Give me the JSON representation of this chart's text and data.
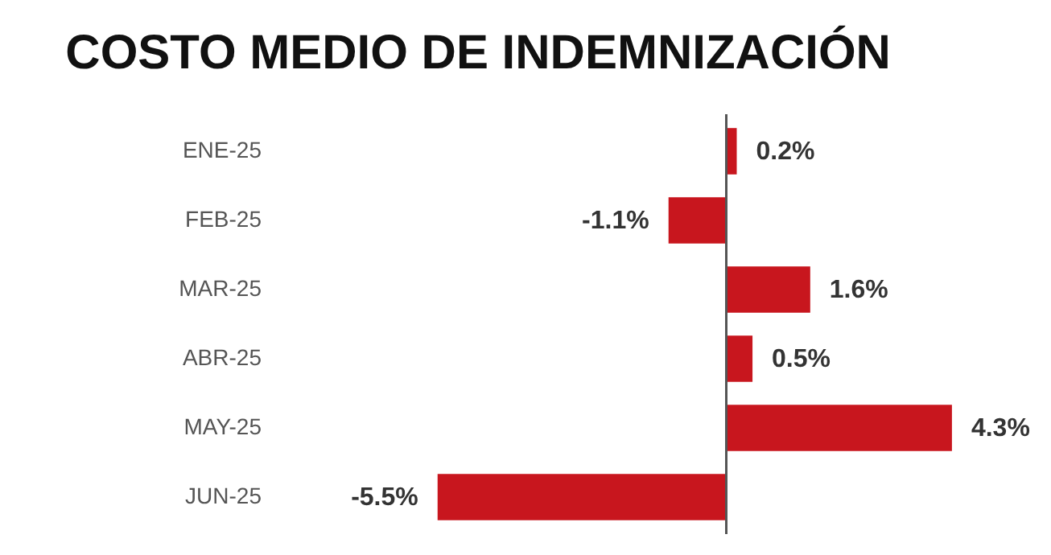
{
  "chart_data": {
    "type": "bar",
    "orientation": "horizontal",
    "title": "COSTO MEDIO DE INDEMNIZACIÓN",
    "categories": [
      "ENE-25",
      "FEB-25",
      "MAR-25",
      "ABR-25",
      "MAY-25",
      "JUN-25"
    ],
    "values": [
      0.2,
      -1.1,
      1.6,
      0.5,
      4.3,
      -5.5
    ],
    "value_labels": [
      "0.2%",
      "-1.1%",
      "1.6%",
      "0.5%",
      "4.3%",
      "-5.5%"
    ],
    "color": "#c8161e"
  }
}
